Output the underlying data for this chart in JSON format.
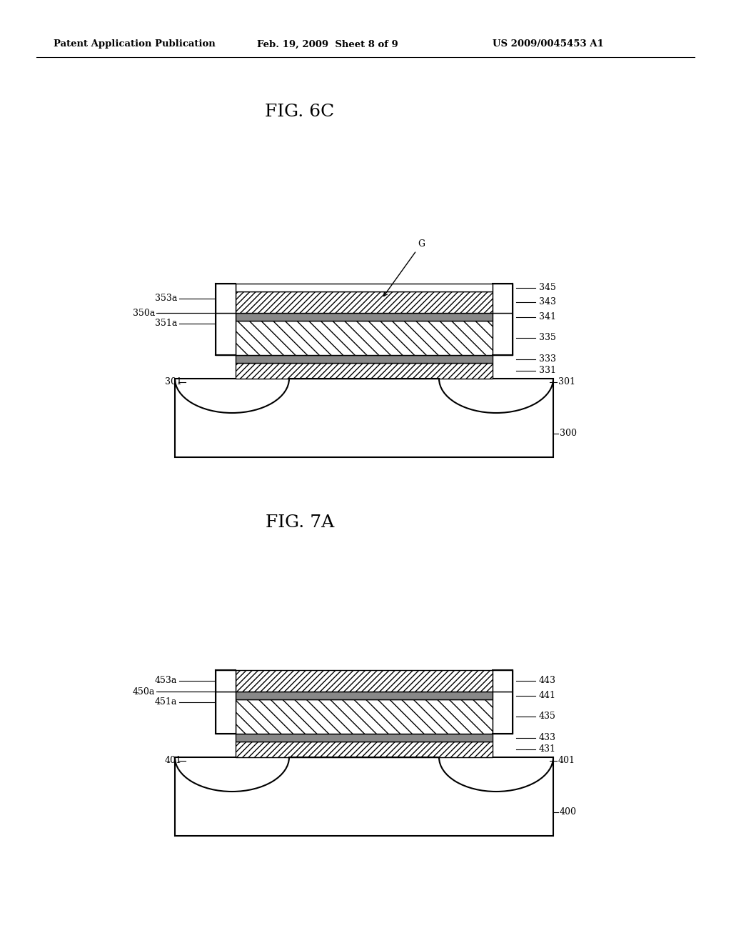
{
  "bg_color": "#ffffff",
  "line_color": "#000000",
  "header_left": "Patent Application Publication",
  "header_mid": "Feb. 19, 2009  Sheet 8 of 9",
  "header_right": "US 2009/0045453 A1",
  "fig1_title": "FIG. 6C",
  "fig2_title": "FIG. 7A"
}
